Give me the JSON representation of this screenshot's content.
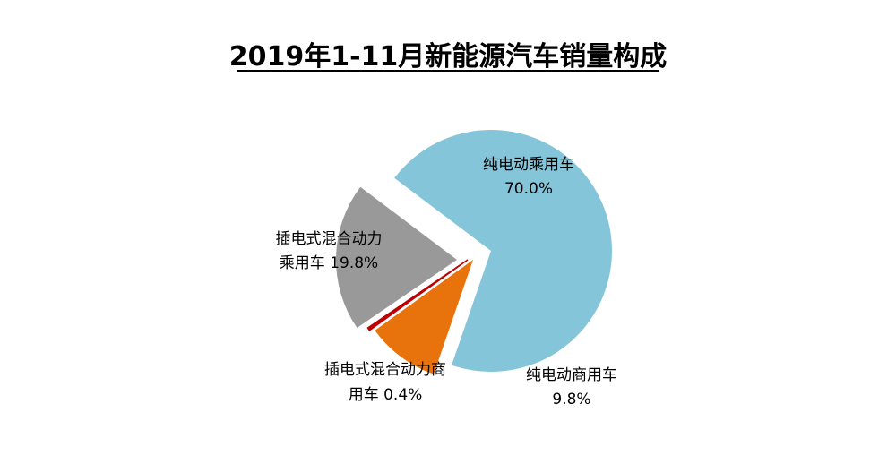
{
  "chart_data": {
    "type": "pie",
    "title": "2019年1-11月新能源汽车销量构成",
    "slices": [
      {
        "name": "纯电动乘用车",
        "value": 70.0,
        "value_label": "70.0%",
        "color": "#85c5d9"
      },
      {
        "name": "纯电动商用车",
        "value": 9.8,
        "value_label": "9.8%",
        "color": "#e8720c"
      },
      {
        "name": "插电式混合动力商用车",
        "value": 0.4,
        "value_label": "0.4%",
        "color": "#c00000"
      },
      {
        "name": "插电式混合动力乘用车",
        "value": 19.8,
        "value_label": "19.8%",
        "color": "#999999"
      }
    ],
    "labels": {
      "bev_passenger": {
        "line1": "纯电动乘用车",
        "line2": "70.0%"
      },
      "bev_commercial": {
        "line1": "纯电动商用车",
        "line2": "9.8%"
      },
      "phev_commercial": {
        "line1": "插电式混合动力商",
        "line2": "用车 0.4%"
      },
      "phev_passenger": {
        "line1": "插电式混合动力",
        "line2": "乘用车 19.8%"
      }
    },
    "legend": "none",
    "exploded": true
  }
}
